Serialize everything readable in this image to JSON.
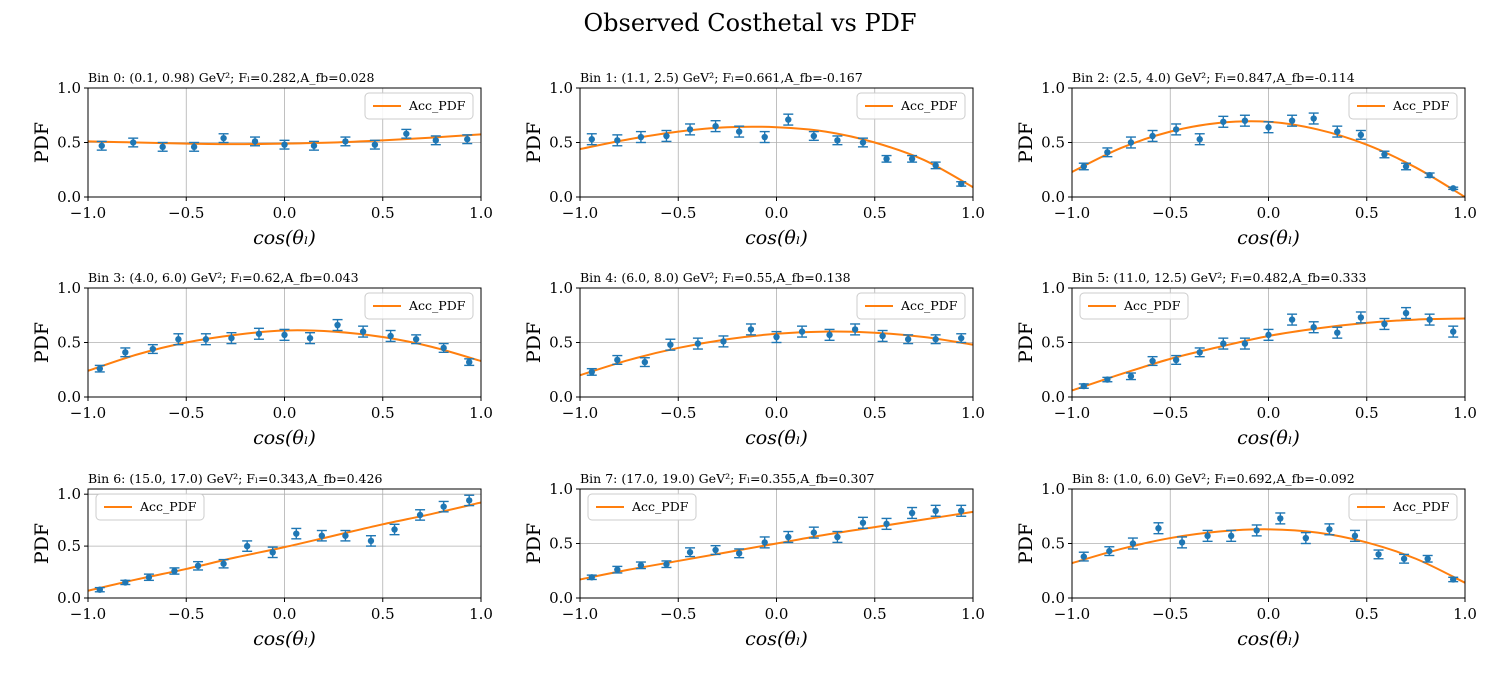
{
  "figure": {
    "title": "Observed Costhetal vs PDF"
  },
  "colors": {
    "data": "#1f77b4",
    "fit": "#ff7f0e",
    "grid": "#b0b0b0"
  },
  "chart_data": [
    {
      "type": "scatter",
      "title": "Bin 0: (0.1, 0.98) GeV²; Fₗ=0.282,A_fb=0.028",
      "xlabel": "cos(θₗ)",
      "ylabel": "PDF",
      "xlim": [
        -1.0,
        1.0
      ],
      "ylim": [
        0.0,
        1.0
      ],
      "xticks": [
        "−1.0",
        "−0.5",
        "0.0",
        "0.5",
        "1.0"
      ],
      "yticks": [
        "0.0",
        "0.5",
        "1.0"
      ],
      "grid": true,
      "legend": "top-right",
      "series": [
        {
          "name": "Acc_PDF",
          "kind": "line",
          "x": [
            -1.0,
            -0.75,
            -0.5,
            -0.25,
            0.0,
            0.25,
            0.5,
            0.75,
            1.0
          ],
          "y": [
            0.51,
            0.5,
            0.49,
            0.485,
            0.49,
            0.5,
            0.52,
            0.545,
            0.575
          ]
        },
        {
          "kind": "errorbar",
          "x": [
            -0.93,
            -0.77,
            -0.62,
            -0.46,
            -0.31,
            -0.15,
            0.0,
            0.15,
            0.31,
            0.46,
            0.62,
            0.77,
            0.93
          ],
          "y": [
            0.47,
            0.5,
            0.46,
            0.46,
            0.54,
            0.51,
            0.48,
            0.47,
            0.51,
            0.48,
            0.58,
            0.52,
            0.53
          ],
          "err": [
            0.04,
            0.04,
            0.04,
            0.04,
            0.04,
            0.04,
            0.04,
            0.04,
            0.04,
            0.04,
            0.04,
            0.04,
            0.04
          ]
        }
      ]
    },
    {
      "type": "scatter",
      "title": "Bin 1: (1.1, 2.5) GeV²; Fₗ=0.661,A_fb=-0.167",
      "xlabel": "cos(θₗ)",
      "ylabel": "PDF",
      "xlim": [
        -1.0,
        1.0
      ],
      "ylim": [
        0.0,
        1.0
      ],
      "xticks": [
        "−1.0",
        "−0.5",
        "0.0",
        "0.5",
        "1.0"
      ],
      "yticks": [
        "0.0",
        "0.5",
        "1.0"
      ],
      "grid": true,
      "legend": "top-right",
      "series": [
        {
          "name": "Acc_PDF",
          "kind": "line",
          "x": [
            -1.0,
            -0.75,
            -0.5,
            -0.25,
            0.0,
            0.25,
            0.5,
            0.75,
            1.0
          ],
          "y": [
            0.44,
            0.53,
            0.6,
            0.64,
            0.64,
            0.6,
            0.5,
            0.34,
            0.09
          ]
        },
        {
          "kind": "errorbar",
          "x": [
            -0.94,
            -0.81,
            -0.69,
            -0.56,
            -0.44,
            -0.31,
            -0.19,
            -0.06,
            0.06,
            0.19,
            0.31,
            0.44,
            0.56,
            0.69,
            0.81,
            0.94
          ],
          "y": [
            0.53,
            0.52,
            0.55,
            0.56,
            0.62,
            0.65,
            0.6,
            0.55,
            0.71,
            0.56,
            0.52,
            0.5,
            0.35,
            0.35,
            0.29,
            0.12
          ],
          "err": [
            0.05,
            0.05,
            0.05,
            0.05,
            0.05,
            0.05,
            0.05,
            0.05,
            0.05,
            0.04,
            0.04,
            0.04,
            0.03,
            0.03,
            0.03,
            0.02
          ]
        }
      ]
    },
    {
      "type": "scatter",
      "title": "Bin 2: (2.5, 4.0) GeV²; Fₗ=0.847,A_fb=-0.114",
      "xlabel": "cos(θₗ)",
      "ylabel": "PDF",
      "xlim": [
        -1.0,
        1.0
      ],
      "ylim": [
        0.0,
        1.0
      ],
      "xticks": [
        "−1.0",
        "−0.5",
        "0.0",
        "0.5",
        "1.0"
      ],
      "yticks": [
        "0.0",
        "0.5",
        "1.0"
      ],
      "grid": true,
      "legend": "top-right",
      "series": [
        {
          "name": "Acc_PDF",
          "kind": "line",
          "x": [
            -1.0,
            -0.75,
            -0.5,
            -0.25,
            0.0,
            0.25,
            0.5,
            0.75,
            1.0
          ],
          "y": [
            0.23,
            0.45,
            0.6,
            0.68,
            0.69,
            0.62,
            0.48,
            0.27,
            0.0
          ]
        },
        {
          "kind": "errorbar",
          "x": [
            -0.94,
            -0.82,
            -0.7,
            -0.59,
            -0.47,
            -0.35,
            -0.23,
            -0.12,
            0.0,
            0.12,
            0.23,
            0.35,
            0.47,
            0.59,
            0.7,
            0.82,
            0.94
          ],
          "y": [
            0.28,
            0.41,
            0.5,
            0.56,
            0.62,
            0.53,
            0.69,
            0.7,
            0.64,
            0.7,
            0.72,
            0.6,
            0.57,
            0.39,
            0.28,
            0.2,
            0.08
          ],
          "err": [
            0.03,
            0.04,
            0.05,
            0.05,
            0.05,
            0.05,
            0.05,
            0.05,
            0.05,
            0.05,
            0.05,
            0.05,
            0.04,
            0.03,
            0.03,
            0.02,
            0.01
          ]
        }
      ]
    },
    {
      "type": "scatter",
      "title": "Bin 3: (4.0, 6.0) GeV²; Fₗ=0.62,A_fb=0.043",
      "xlabel": "cos(θₗ)",
      "ylabel": "PDF",
      "xlim": [
        -1.0,
        1.0
      ],
      "ylim": [
        0.0,
        1.0
      ],
      "xticks": [
        "−1.0",
        "−0.5",
        "0.0",
        "0.5",
        "1.0"
      ],
      "yticks": [
        "0.0",
        "0.5",
        "1.0"
      ],
      "grid": true,
      "legend": "top-right",
      "series": [
        {
          "name": "Acc_PDF",
          "kind": "line",
          "x": [
            -1.0,
            -0.75,
            -0.5,
            -0.25,
            0.0,
            0.25,
            0.5,
            0.75,
            1.0
          ],
          "y": [
            0.24,
            0.39,
            0.5,
            0.57,
            0.61,
            0.6,
            0.55,
            0.46,
            0.33
          ]
        },
        {
          "kind": "errorbar",
          "x": [
            -0.94,
            -0.81,
            -0.67,
            -0.54,
            -0.4,
            -0.27,
            -0.13,
            0.0,
            0.13,
            0.27,
            0.4,
            0.54,
            0.67,
            0.81,
            0.94
          ],
          "y": [
            0.26,
            0.41,
            0.44,
            0.53,
            0.53,
            0.54,
            0.58,
            0.57,
            0.54,
            0.66,
            0.6,
            0.56,
            0.53,
            0.45,
            0.32
          ],
          "err": [
            0.03,
            0.04,
            0.04,
            0.05,
            0.05,
            0.05,
            0.05,
            0.05,
            0.05,
            0.05,
            0.05,
            0.05,
            0.04,
            0.04,
            0.03
          ]
        }
      ]
    },
    {
      "type": "scatter",
      "title": "Bin 4: (6.0, 8.0) GeV²; Fₗ=0.55,A_fb=0.138",
      "xlabel": "cos(θₗ)",
      "ylabel": "PDF",
      "xlim": [
        -1.0,
        1.0
      ],
      "ylim": [
        0.0,
        1.0
      ],
      "xticks": [
        "−1.0",
        "−0.5",
        "0.0",
        "0.5",
        "1.0"
      ],
      "yticks": [
        "0.0",
        "0.5",
        "1.0"
      ],
      "grid": true,
      "legend": "top-right",
      "series": [
        {
          "name": "Acc_PDF",
          "kind": "line",
          "x": [
            -1.0,
            -0.75,
            -0.5,
            -0.25,
            0.0,
            0.25,
            0.5,
            0.75,
            1.0
          ],
          "y": [
            0.2,
            0.34,
            0.45,
            0.53,
            0.58,
            0.6,
            0.59,
            0.55,
            0.48
          ]
        },
        {
          "kind": "errorbar",
          "x": [
            -0.94,
            -0.81,
            -0.67,
            -0.54,
            -0.4,
            -0.27,
            -0.13,
            0.0,
            0.13,
            0.27,
            0.4,
            0.54,
            0.67,
            0.81,
            0.94
          ],
          "y": [
            0.23,
            0.34,
            0.32,
            0.48,
            0.49,
            0.51,
            0.62,
            0.55,
            0.6,
            0.57,
            0.62,
            0.56,
            0.53,
            0.53,
            0.54
          ],
          "err": [
            0.03,
            0.04,
            0.04,
            0.05,
            0.05,
            0.05,
            0.05,
            0.05,
            0.05,
            0.05,
            0.05,
            0.05,
            0.04,
            0.04,
            0.04
          ]
        }
      ]
    },
    {
      "type": "scatter",
      "title": "Bin 5: (11.0, 12.5) GeV²; Fₗ=0.482,A_fb=0.333",
      "xlabel": "cos(θₗ)",
      "ylabel": "PDF",
      "xlim": [
        -1.0,
        1.0
      ],
      "ylim": [
        0.0,
        1.0
      ],
      "xticks": [
        "−1.0",
        "−0.5",
        "0.0",
        "0.5",
        "1.0"
      ],
      "yticks": [
        "0.0",
        "0.5",
        "1.0"
      ],
      "grid": true,
      "legend": "top-left",
      "series": [
        {
          "name": "Acc_PDF",
          "kind": "line",
          "x": [
            -1.0,
            -0.75,
            -0.5,
            -0.25,
            0.0,
            0.25,
            0.5,
            0.75,
            1.0
          ],
          "y": [
            0.06,
            0.21,
            0.35,
            0.46,
            0.56,
            0.63,
            0.68,
            0.71,
            0.72
          ]
        },
        {
          "kind": "errorbar",
          "x": [
            -0.94,
            -0.82,
            -0.7,
            -0.59,
            -0.47,
            -0.35,
            -0.23,
            -0.12,
            0.0,
            0.12,
            0.23,
            0.35,
            0.47,
            0.59,
            0.7,
            0.82,
            0.94
          ],
          "y": [
            0.1,
            0.16,
            0.19,
            0.33,
            0.34,
            0.41,
            0.49,
            0.49,
            0.57,
            0.71,
            0.64,
            0.59,
            0.73,
            0.67,
            0.77,
            0.71,
            0.6
          ],
          "err": [
            0.02,
            0.02,
            0.03,
            0.04,
            0.04,
            0.04,
            0.05,
            0.05,
            0.05,
            0.05,
            0.05,
            0.05,
            0.05,
            0.05,
            0.05,
            0.05,
            0.05
          ]
        }
      ]
    },
    {
      "type": "scatter",
      "title": "Bin 6: (15.0, 17.0) GeV²; Fₗ=0.343,A_fb=0.426",
      "xlabel": "cos(θₗ)",
      "ylabel": "PDF",
      "xlim": [
        -1.0,
        1.0
      ],
      "ylim": [
        0.0,
        1.05
      ],
      "xticks": [
        "−1.0",
        "−0.5",
        "0.0",
        "0.5",
        "1.0"
      ],
      "yticks": [
        "0.0",
        "0.5",
        "1.0"
      ],
      "grid": true,
      "legend": "top-left",
      "series": [
        {
          "name": "Acc_PDF",
          "kind": "line",
          "x": [
            -1.0,
            -0.75,
            -0.5,
            -0.25,
            0.0,
            0.25,
            0.5,
            0.75,
            1.0
          ],
          "y": [
            0.07,
            0.18,
            0.28,
            0.39,
            0.49,
            0.6,
            0.71,
            0.81,
            0.92
          ]
        },
        {
          "kind": "errorbar",
          "x": [
            -0.94,
            -0.81,
            -0.69,
            -0.56,
            -0.44,
            -0.31,
            -0.19,
            -0.06,
            0.06,
            0.19,
            0.31,
            0.44,
            0.56,
            0.69,
            0.81,
            0.94
          ],
          "y": [
            0.08,
            0.15,
            0.2,
            0.26,
            0.31,
            0.33,
            0.5,
            0.44,
            0.62,
            0.6,
            0.6,
            0.55,
            0.66,
            0.8,
            0.88,
            0.94
          ],
          "err": [
            0.02,
            0.02,
            0.03,
            0.03,
            0.04,
            0.04,
            0.05,
            0.05,
            0.05,
            0.05,
            0.05,
            0.05,
            0.05,
            0.05,
            0.05,
            0.05
          ]
        }
      ]
    },
    {
      "type": "scatter",
      "title": "Bin 7: (17.0, 19.0) GeV²; Fₗ=0.355,A_fb=0.307",
      "xlabel": "cos(θₗ)",
      "ylabel": "PDF",
      "xlim": [
        -1.0,
        1.0
      ],
      "ylim": [
        0.0,
        1.0
      ],
      "xticks": [
        "−1.0",
        "−0.5",
        "0.0",
        "0.5",
        "1.0"
      ],
      "yticks": [
        "0.0",
        "0.5",
        "1.0"
      ],
      "grid": true,
      "legend": "top-left",
      "series": [
        {
          "name": "Acc_PDF",
          "kind": "line",
          "x": [
            -1.0,
            -0.75,
            -0.5,
            -0.25,
            0.0,
            0.25,
            0.5,
            0.75,
            1.0
          ],
          "y": [
            0.17,
            0.26,
            0.34,
            0.42,
            0.5,
            0.58,
            0.65,
            0.72,
            0.79
          ]
        },
        {
          "kind": "errorbar",
          "x": [
            -0.94,
            -0.81,
            -0.69,
            -0.56,
            -0.44,
            -0.31,
            -0.19,
            -0.06,
            0.06,
            0.19,
            0.31,
            0.44,
            0.56,
            0.69,
            0.81,
            0.94
          ],
          "y": [
            0.19,
            0.26,
            0.3,
            0.31,
            0.42,
            0.44,
            0.41,
            0.51,
            0.56,
            0.6,
            0.56,
            0.69,
            0.68,
            0.78,
            0.8,
            0.8
          ],
          "err": [
            0.02,
            0.03,
            0.03,
            0.03,
            0.04,
            0.04,
            0.04,
            0.05,
            0.05,
            0.05,
            0.05,
            0.05,
            0.05,
            0.05,
            0.05,
            0.05
          ]
        }
      ]
    },
    {
      "type": "scatter",
      "title": "Bin 8: (1.0, 6.0) GeV²; Fₗ=0.692,A_fb=-0.092",
      "xlabel": "cos(θₗ)",
      "ylabel": "PDF",
      "xlim": [
        -1.0,
        1.0
      ],
      "ylim": [
        0.0,
        1.0
      ],
      "xticks": [
        "−1.0",
        "−0.5",
        "0.0",
        "0.5",
        "1.0"
      ],
      "yticks": [
        "0.0",
        "0.5",
        "1.0"
      ],
      "grid": true,
      "legend": "top-right",
      "series": [
        {
          "name": "Acc_PDF",
          "kind": "line",
          "x": [
            -1.0,
            -0.75,
            -0.5,
            -0.25,
            0.0,
            0.25,
            0.5,
            0.75,
            1.0
          ],
          "y": [
            0.32,
            0.45,
            0.55,
            0.61,
            0.63,
            0.6,
            0.51,
            0.36,
            0.14
          ]
        },
        {
          "kind": "errorbar",
          "x": [
            -0.94,
            -0.81,
            -0.69,
            -0.56,
            -0.44,
            -0.31,
            -0.19,
            -0.06,
            0.06,
            0.19,
            0.31,
            0.44,
            0.56,
            0.69,
            0.81,
            0.94
          ],
          "y": [
            0.38,
            0.43,
            0.5,
            0.64,
            0.51,
            0.57,
            0.57,
            0.62,
            0.73,
            0.55,
            0.63,
            0.57,
            0.4,
            0.36,
            0.36,
            0.17
          ],
          "err": [
            0.04,
            0.04,
            0.05,
            0.05,
            0.05,
            0.05,
            0.05,
            0.05,
            0.05,
            0.05,
            0.05,
            0.05,
            0.04,
            0.04,
            0.03,
            0.02
          ]
        }
      ]
    }
  ]
}
